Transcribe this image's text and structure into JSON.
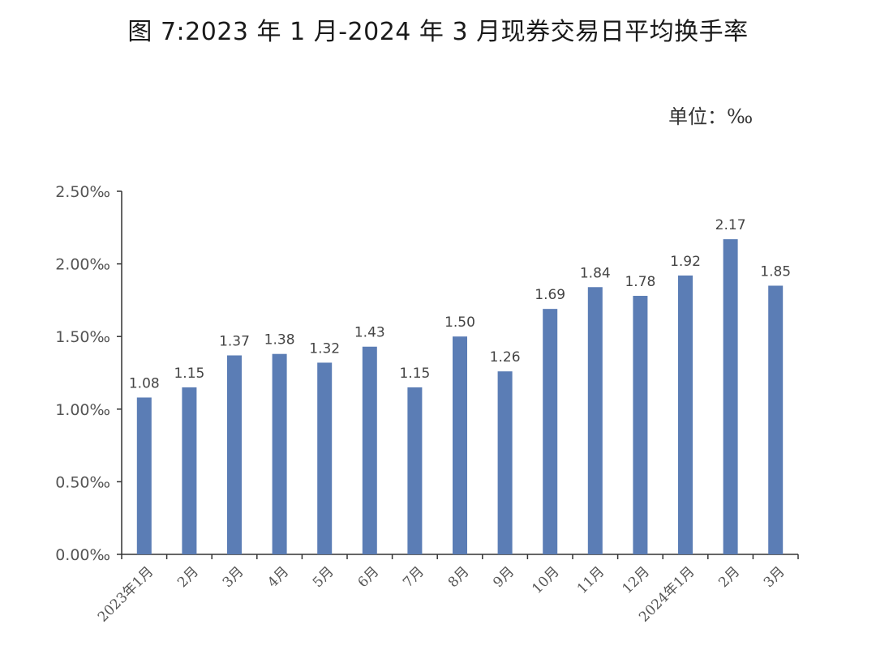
{
  "title": "图 7:2023 年 1 月-2024 年 3 月现券交易日平均换手率",
  "unit_label": "单位：‰",
  "colors": {
    "bar": "#5b7db5",
    "axis": "#333333",
    "text": "#555555"
  },
  "chart_data": {
    "type": "bar",
    "title": "图 7:2023 年 1 月-2024 年 3 月现券交易日平均换手率",
    "categories": [
      "2023年1月",
      "2月",
      "3月",
      "4月",
      "5月",
      "6月",
      "7月",
      "8月",
      "9月",
      "10月",
      "11月",
      "12月",
      "2024年1月",
      "2月",
      "3月"
    ],
    "values": [
      1.08,
      1.15,
      1.37,
      1.38,
      1.32,
      1.43,
      1.15,
      1.5,
      1.26,
      1.69,
      1.84,
      1.78,
      1.92,
      2.17,
      1.85
    ],
    "data_labels": [
      "1.08",
      "1.15",
      "1.37",
      "1.38",
      "1.32",
      "1.43",
      "1.15",
      "1.50",
      "1.26",
      "1.69",
      "1.84",
      "1.78",
      "1.92",
      "2.17",
      "1.85"
    ],
    "ylim": [
      0,
      2.5
    ],
    "yticks": [
      0,
      0.5,
      1.0,
      1.5,
      2.0,
      2.5
    ],
    "ytick_labels": [
      "0.00‰",
      "0.50‰",
      "1.00‰",
      "1.50‰",
      "2.00‰",
      "2.50‰"
    ],
    "xlabel": "",
    "ylabel": "",
    "grid": false,
    "legend": "none"
  }
}
